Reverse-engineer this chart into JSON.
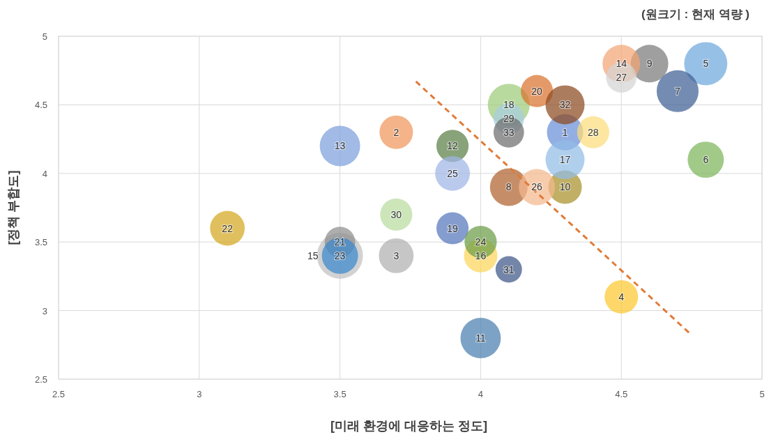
{
  "chart_data": {
    "type": "bubble",
    "xlabel": "[미래 환경에 대응하는 정도]",
    "ylabel": "[정책 부합도]",
    "annotations": [
      "(원크기 : 현재 역량 )"
    ],
    "xlim": [
      2.5,
      5
    ],
    "xticks": [
      2.5,
      3,
      3.5,
      4,
      4.5,
      5
    ],
    "ylim": [
      2.5,
      5
    ],
    "yticks": [
      2.5,
      3,
      3.5,
      4,
      4.5,
      5
    ],
    "grid": true,
    "series": [
      {
        "name": "1",
        "color": "#6a8fd8",
        "x": [
          4.3
        ],
        "values": [
          4.3
        ],
        "sizes": [
          0.62
        ]
      },
      {
        "name": "2",
        "color": "#f0955a",
        "x": [
          3.7
        ],
        "values": [
          4.3
        ],
        "sizes": [
          0.53
        ]
      },
      {
        "name": "3",
        "color": "#b0b0b0",
        "x": [
          3.7
        ],
        "values": [
          3.4
        ],
        "sizes": [
          0.57
        ]
      },
      {
        "name": "4",
        "color": "#fcc72f",
        "x": [
          4.5
        ],
        "values": [
          3.1
        ],
        "sizes": [
          0.53
        ]
      },
      {
        "name": "5",
        "color": "#6fa8dc",
        "x": [
          4.8
        ],
        "values": [
          4.8
        ],
        "sizes": [
          0.88
        ]
      },
      {
        "name": "6",
        "color": "#7db65a",
        "x": [
          4.8
        ],
        "values": [
          4.1
        ],
        "sizes": [
          0.62
        ]
      },
      {
        "name": "7",
        "color": "#3f5f94",
        "x": [
          4.7
        ],
        "values": [
          4.6
        ],
        "sizes": [
          0.83
        ]
      },
      {
        "name": "8",
        "color": "#b0622e",
        "x": [
          4.1
        ],
        "values": [
          3.9
        ],
        "sizes": [
          0.67
        ]
      },
      {
        "name": "9",
        "color": "#7a7a7a",
        "x": [
          4.6
        ],
        "values": [
          4.8
        ],
        "sizes": [
          0.67
        ]
      },
      {
        "name": "10",
        "color": "#a8902a",
        "x": [
          4.3
        ],
        "values": [
          3.9
        ],
        "sizes": [
          0.53
        ]
      },
      {
        "name": "11",
        "color": "#4a7fae",
        "x": [
          4.0
        ],
        "values": [
          2.8
        ],
        "sizes": [
          0.77
        ]
      },
      {
        "name": "12",
        "color": "#5a7f45",
        "x": [
          3.9
        ],
        "values": [
          4.2
        ],
        "sizes": [
          0.49
        ]
      },
      {
        "name": "13",
        "color": "#7d9fdd",
        "x": [
          3.5
        ],
        "values": [
          4.2
        ],
        "sizes": [
          0.77
        ]
      },
      {
        "name": "14",
        "color": "#f4a574",
        "x": [
          4.5
        ],
        "values": [
          4.8
        ],
        "sizes": [
          0.67
        ]
      },
      {
        "name": "15",
        "color": "#c0c0c0",
        "x": [
          3.5
        ],
        "values": [
          3.4
        ],
        "sizes": [
          1
        ]
      },
      {
        "name": "16",
        "color": "#fcd55a",
        "x": [
          4.0
        ],
        "values": [
          3.4
        ],
        "sizes": [
          0.53
        ]
      },
      {
        "name": "17",
        "color": "#92bde6",
        "x": [
          4.3
        ],
        "values": [
          4.1
        ],
        "sizes": [
          0.72
        ]
      },
      {
        "name": "18",
        "color": "#9ccc7a",
        "x": [
          4.1
        ],
        "values": [
          4.5
        ],
        "sizes": [
          0.83
        ]
      },
      {
        "name": "19",
        "color": "#5577bb",
        "x": [
          3.9
        ],
        "values": [
          3.6
        ],
        "sizes": [
          0.49
        ]
      },
      {
        "name": "20",
        "color": "#d9732e",
        "x": [
          4.2
        ],
        "values": [
          4.6
        ],
        "sizes": [
          0.49
        ]
      },
      {
        "name": "21",
        "color": "#8f8f8f",
        "x": [
          3.5
        ],
        "values": [
          3.5
        ],
        "sizes": [
          0.44
        ]
      },
      {
        "name": "22",
        "color": "#d4a820",
        "x": [
          3.1
        ],
        "values": [
          3.6
        ],
        "sizes": [
          0.57
        ]
      },
      {
        "name": "23",
        "color": "#3a88cc",
        "x": [
          3.5
        ],
        "values": [
          3.4
        ],
        "sizes": [
          0.62
        ]
      },
      {
        "name": "24",
        "color": "#6b9c45",
        "x": [
          4.0
        ],
        "values": [
          3.5
        ],
        "sizes": [
          0.49
        ]
      },
      {
        "name": "25",
        "color": "#9fb6e6",
        "x": [
          3.9
        ],
        "values": [
          4.0
        ],
        "sizes": [
          0.57
        ]
      },
      {
        "name": "26",
        "color": "#f4b88e",
        "x": [
          4.2
        ],
        "values": [
          3.9
        ],
        "sizes": [
          0.62
        ]
      },
      {
        "name": "27",
        "color": "#d4d4d4",
        "x": [
          4.5
        ],
        "values": [
          4.7
        ],
        "sizes": [
          0.44
        ]
      },
      {
        "name": "28",
        "color": "#fcdc7a",
        "x": [
          4.4
        ],
        "values": [
          4.3
        ],
        "sizes": [
          0.49
        ]
      },
      {
        "name": "29",
        "color": "#a8cde0",
        "x": [
          4.1
        ],
        "values": [
          4.4
        ],
        "sizes": [
          0.44
        ]
      },
      {
        "name": "30",
        "color": "#b8dca0",
        "x": [
          3.7
        ],
        "values": [
          3.7
        ],
        "sizes": [
          0.49
        ]
      },
      {
        "name": "31",
        "color": "#3d5687",
        "x": [
          4.1
        ],
        "values": [
          3.3
        ],
        "sizes": [
          0.33
        ]
      },
      {
        "name": "32",
        "color": "#8c4a20",
        "x": [
          4.3
        ],
        "values": [
          4.5
        ],
        "sizes": [
          0.72
        ]
      },
      {
        "name": "33",
        "color": "#6e6e6e",
        "x": [
          4.1
        ],
        "values": [
          4.3
        ],
        "sizes": [
          0.44
        ]
      },
      {
        "type": "line",
        "color": "#e07b39",
        "line_style": "dashed",
        "x": [
          3.77,
          4.74
        ],
        "values": [
          4.67,
          2.84
        ]
      }
    ]
  }
}
